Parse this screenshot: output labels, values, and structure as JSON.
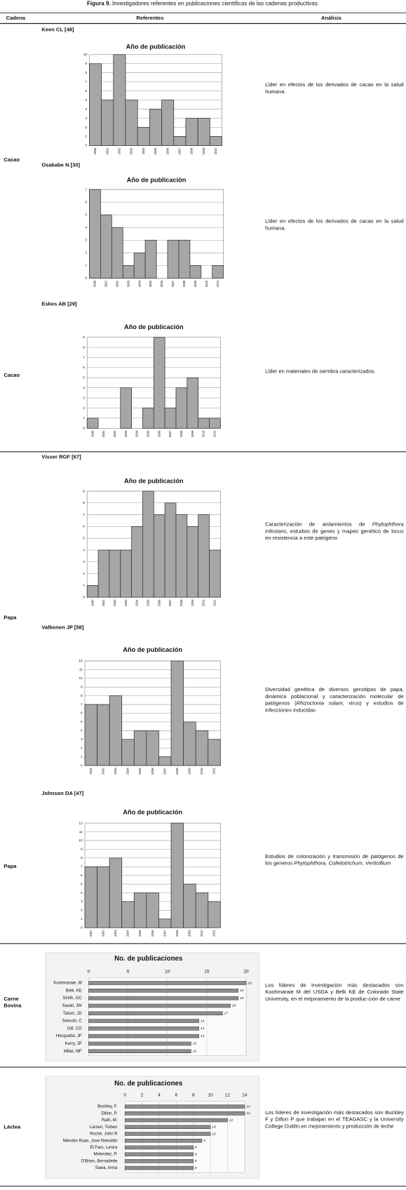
{
  "header": {
    "label": "Figura 9.",
    "title": "Investigadores referentes en publicaciones científicas de las cadenas productivas."
  },
  "table": {
    "columns": [
      "Cadena",
      "Referentes",
      "Análisis"
    ],
    "groups": [
      {
        "cadena": "Cacao",
        "rows": [
          {
            "referente": "Keen CL [48]",
            "analysis": [
              "Líder en efectos de los derivados de cacao en la salud humana."
            ],
            "chart_data": {
              "type": "bar",
              "title": "Año de publicación",
              "categories": [
                "2000",
                "2001",
                "2002",
                "2003",
                "2004",
                "2005",
                "2006",
                "2007",
                "2008",
                "2009",
                "2010"
              ],
              "values": [
                9,
                5,
                10,
                5,
                2,
                4,
                5,
                1,
                3,
                3,
                1
              ],
              "color": "#a6a6a6",
              "ylim": [
                0,
                10
              ],
              "yticks": [
                0,
                1,
                2,
                3,
                4,
                5,
                6,
                7,
                8,
                9,
                10
              ],
              "grid": true
            }
          },
          {
            "referente": "Osakabe N [30]",
            "analysis": [
              "Líder en efectos de los derivados de cacao en la salud humana."
            ],
            "chart_data": {
              "type": "bar",
              "title": "Año de publicación",
              "categories": [
                "2000",
                "2001",
                "2002",
                "2003",
                "2004",
                "2005",
                "2006",
                "2007",
                "2008",
                "2009",
                "2010",
                "2011"
              ],
              "values": [
                7,
                5,
                4,
                1,
                2,
                3,
                0,
                3,
                3,
                1,
                0,
                1
              ],
              "color": "#a6a6a6",
              "ylim": [
                0,
                7
              ],
              "yticks": [
                0,
                1,
                2,
                3,
                4,
                5,
                6,
                7
              ],
              "grid": true
            }
          }
        ]
      },
      {
        "cadena": "Cacao",
        "rows": [
          {
            "referente": "Eskes AB [29]",
            "analysis": [
              "Líder en materiales de siembra caracterizados."
            ],
            "chart_data": {
              "type": "bar",
              "title": "Año de publicación",
              "categories": [
                "2000",
                "2001",
                "2002",
                "2003",
                "2004",
                "2005",
                "2006",
                "2007",
                "2008",
                "2009",
                "2010",
                "2011"
              ],
              "values": [
                1,
                0,
                0,
                4,
                0,
                2,
                9,
                2,
                4,
                5,
                1,
                1
              ],
              "color": "#a6a6a6",
              "ylim": [
                0,
                9
              ],
              "yticks": [
                0,
                1,
                2,
                3,
                4,
                5,
                6,
                7,
                8,
                9
              ],
              "grid": true
            }
          }
        ]
      },
      {
        "cadena": "Papa",
        "rows": [
          {
            "referente": "Visser RGF [67]",
            "analysis": [
              "Caracterización de aislamientos de ",
              "Phytophthora infestans",
              ", estudios de genes y mapeo genético de locus en resistencia a este patógeno"
            ],
            "chart_data": {
              "type": "bar",
              "title": "Año de publicación",
              "categories": [
                "2000",
                "2001",
                "2002",
                "2003",
                "2004",
                "2005",
                "2006",
                "2007",
                "2008",
                "2009",
                "2010",
                "2011"
              ],
              "values": [
                1,
                4,
                4,
                4,
                6,
                9,
                7,
                8,
                7,
                6,
                7,
                4
              ],
              "color": "#a6a6a6",
              "ylim": [
                0,
                9
              ],
              "yticks": [
                0,
                1,
                2,
                3,
                4,
                5,
                6,
                7,
                8,
                9
              ],
              "grid": true
            }
          },
          {
            "referente": "Valkonen JP [58]",
            "analysis": [
              "Diversidad genética de diversos genotipos de papa, dinámica poblacional y caracterización molecular de patógenos (",
              "Rhizoctonia solani",
              ", virus) y estudios de infecciones inducidas"
            ],
            "chart_data": {
              "type": "bar",
              "title": "Año de publicación",
              "categories": [
                "2001",
                "2002",
                "2003",
                "2004",
                "2005",
                "2006",
                "2007",
                "2008",
                "2009",
                "2010",
                "2011"
              ],
              "values": [
                7,
                7,
                8,
                3,
                4,
                4,
                1,
                12,
                5,
                4,
                3
              ],
              "color": "#a6a6a6",
              "ylim": [
                0,
                12
              ],
              "yticks": [
                0,
                1,
                2,
                3,
                4,
                5,
                6,
                7,
                8,
                9,
                10,
                11,
                12
              ],
              "grid": true
            }
          }
        ]
      },
      {
        "cadena": "Papa",
        "rows": [
          {
            "referente": "Johnson DA [47]",
            "analysis": [
              "Estudios de colonización y transmisión de patógenos de los generos ",
              "Phytophthora, Colletotrichum, Verticillium"
            ],
            "chart_data": {
              "type": "bar",
              "title": "Año de publicación",
              "categories": [
                "2001",
                "2002",
                "2003",
                "2004",
                "2005",
                "2006",
                "2007",
                "2008",
                "2009",
                "2010",
                "2011"
              ],
              "values": [
                7,
                7,
                8,
                3,
                4,
                4,
                1,
                12,
                5,
                4,
                3
              ],
              "color": "#a6a6a6",
              "ylim": [
                0,
                12
              ],
              "yticks": [
                0,
                1,
                2,
                3,
                4,
                5,
                6,
                7,
                8,
                9,
                10,
                11,
                12
              ],
              "grid": true
            }
          }
        ]
      },
      {
        "cadena": "Carne Bovina",
        "rows": [
          {
            "analysis": [
              "Los líderes de investigación más destacados son Koohmaraie M del USDA y Belk KE de Colorado State University, en el mejoramiento de la produc-ción de carne"
            ],
            "chart_data": {
              "type": "barh",
              "title": "No. de publicaciones",
              "categories": [
                "Koohmaraie, M",
                "Belk, KE",
                "Smith, GC",
                "Savell, JW",
                "Tatum, JD",
                "Sanudo, C",
                "Gill, CO",
                "Hocquette, JF",
                "Kerry, JP",
                "Miller, MF"
              ],
              "values": [
                20,
                19,
                19,
                18,
                17,
                14,
                14,
                14,
                13,
                13
              ],
              "color": "#8c8c8c",
              "xlim": [
                0,
                20
              ],
              "xticks": [
                0,
                5,
                10,
                15,
                20
              ],
              "grid": true
            }
          }
        ]
      },
      {
        "cadena": "Láctea",
        "rows": [
          {
            "analysis": [
              "Los líderes de investigación más destacados son Buckley F y Dillon P que trabajan en el TEAGASC y la University College Dublin,en mejoramiento y producción de leche"
            ],
            "chart_data": {
              "type": "barh",
              "title": "No. de publicaciones",
              "categories": [
                "Buckley, F.",
                "Dillon, P.",
                "Rath, M.",
                "Larsen, Torben",
                "Roche, John R",
                "Mendes Ruas, Jose Reinaldo",
                "El Faro, Lenira",
                "Melendez, P.",
                "O'Brien, Bernadette",
                "Sawa, Anna"
              ],
              "values": [
                14,
                14,
                12,
                10,
                10,
                9,
                8,
                8,
                8,
                8
              ],
              "color": "#8c8c8c",
              "xlim": [
                0,
                14
              ],
              "xticks": [
                0,
                2,
                4,
                6,
                8,
                10,
                12,
                14
              ],
              "grid": true
            }
          }
        ]
      }
    ]
  }
}
